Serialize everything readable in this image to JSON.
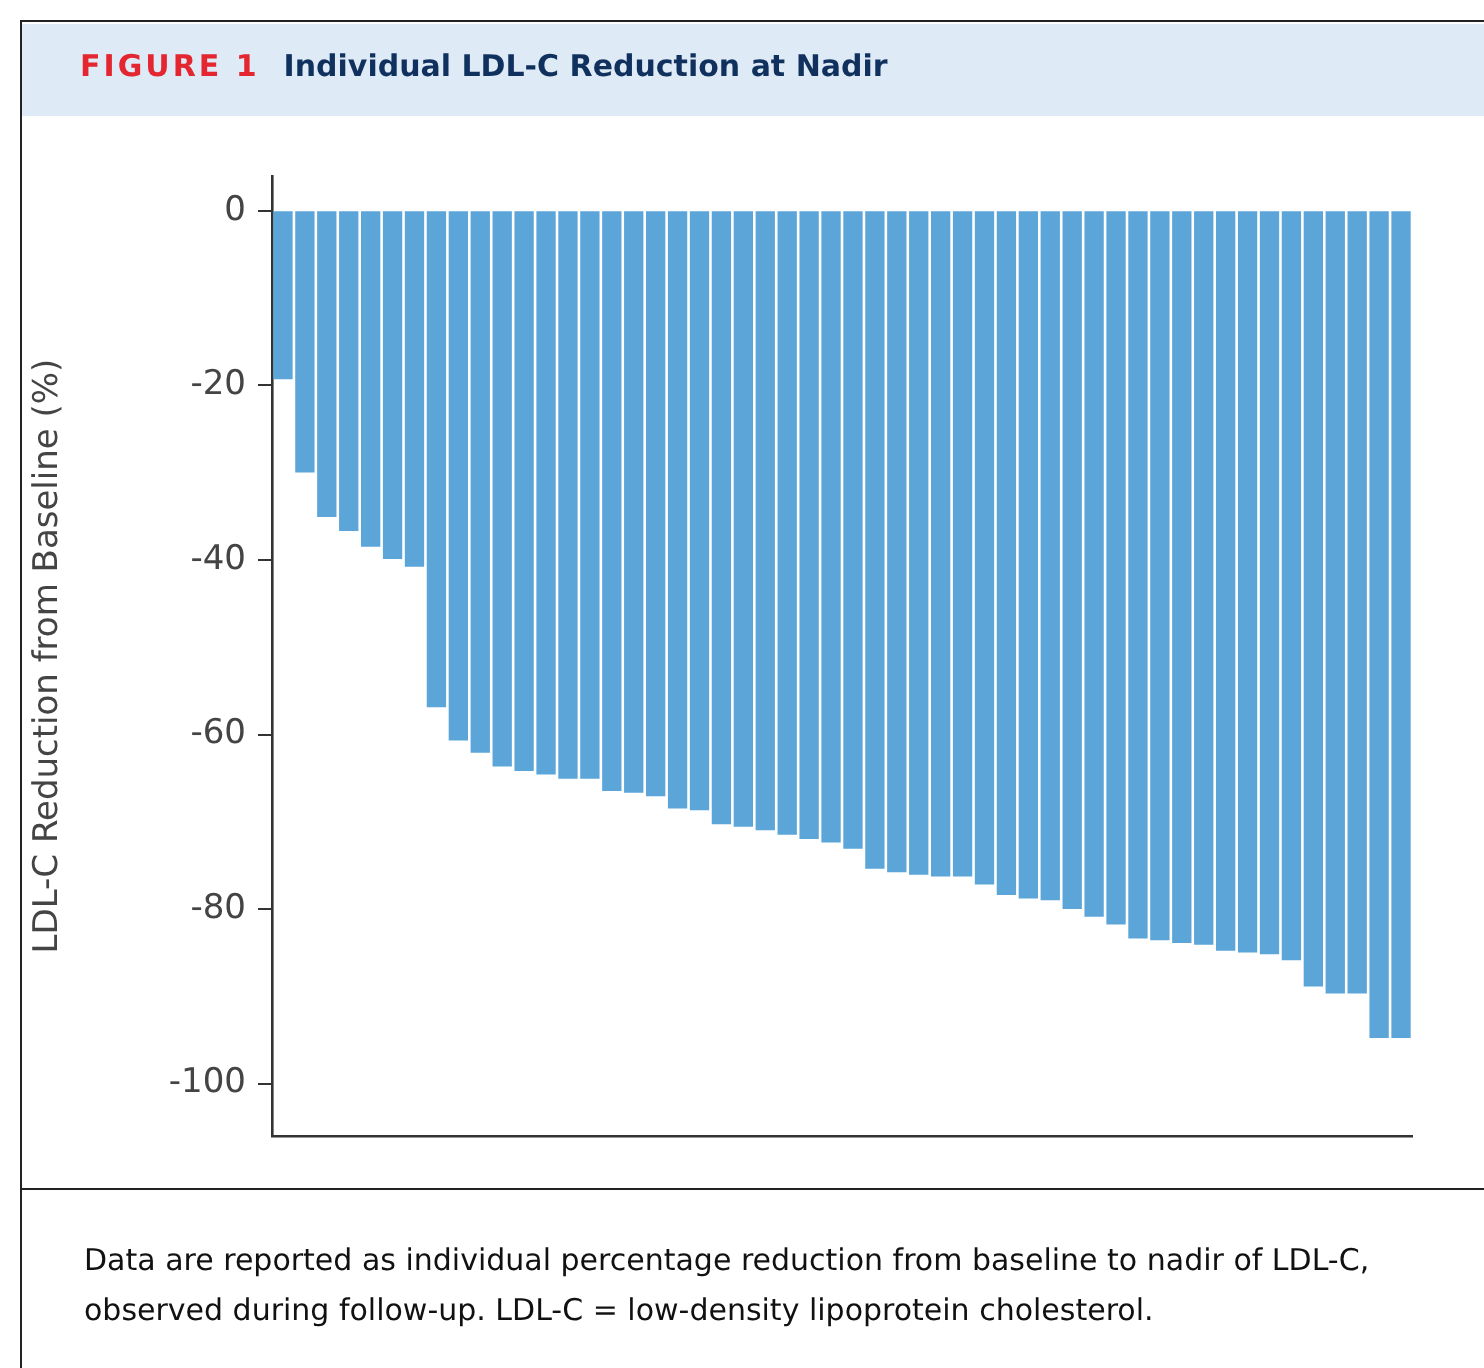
{
  "chart_data": {
    "type": "bar",
    "title": "Individual LDL-C Reduction at Nadir",
    "ylabel": "LDL-C Reduction from Baseline (%)",
    "annotations": [
      "FIGURE 1",
      "Data are reported as individual percentage reduction from baseline to nadir of LDL-C, observed during follow-up. LDL-C = low-density lipoprotein cholesterol."
    ],
    "categories": [
      null,
      null,
      null,
      null,
      null,
      null,
      null,
      null,
      null,
      null,
      null,
      null,
      null,
      null,
      null,
      null,
      null,
      null,
      null,
      null,
      null,
      null,
      null,
      null,
      null,
      null,
      null,
      null,
      null,
      null,
      null,
      null,
      null,
      null,
      null,
      null,
      null,
      null,
      null,
      null,
      null,
      null,
      null,
      null,
      null,
      null,
      null,
      null,
      null,
      null,
      null,
      null
    ],
    "values": [
      -19.2,
      -29.9,
      -35.0,
      -36.6,
      -38.4,
      -39.8,
      -40.7,
      -56.8,
      -60.6,
      -62.0,
      -63.6,
      -64.1,
      -64.5,
      -65.0,
      -65.0,
      -66.4,
      -66.6,
      -67.0,
      -68.4,
      -68.6,
      -70.2,
      -70.5,
      -70.9,
      -71.4,
      -71.9,
      -72.3,
      -73.0,
      -75.3,
      -75.7,
      -76.0,
      -76.2,
      -76.2,
      -77.1,
      -78.3,
      -78.7,
      -78.9,
      -79.9,
      -80.8,
      -81.7,
      -83.3,
      -83.5,
      -83.8,
      -84.0,
      -84.7,
      -84.9,
      -85.1,
      -85.8,
      -88.8,
      -89.6,
      -89.6,
      -94.7,
      -94.7
    ],
    "color": "#5ba5d9",
    "ylim": [
      -106,
      4
    ],
    "yticks": [
      0,
      -20,
      -40,
      -60,
      -80,
      -100
    ],
    "grid": false,
    "legend": false
  }
}
